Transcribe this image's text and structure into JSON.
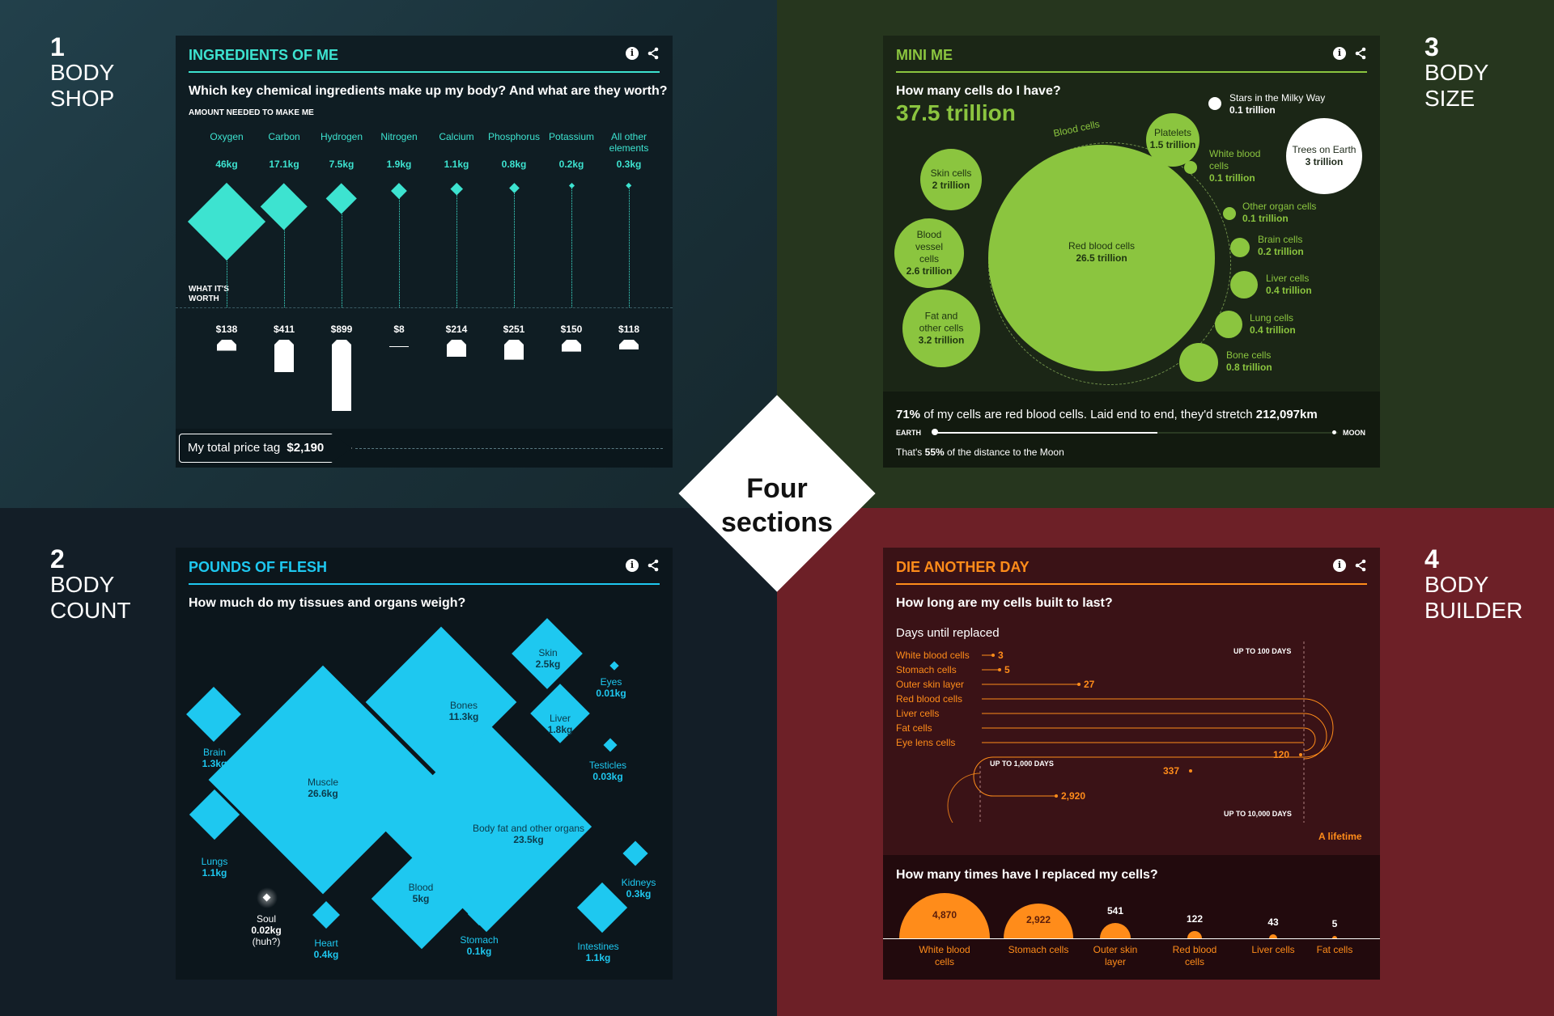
{
  "center": {
    "line1": "Four",
    "line2": "sections"
  },
  "sections": [
    {
      "num": "1",
      "l1": "BODY",
      "l2": "SHOP"
    },
    {
      "num": "2",
      "l1": "BODY",
      "l2": "COUNT"
    },
    {
      "num": "3",
      "l1": "BODY",
      "l2": "SIZE"
    },
    {
      "num": "4",
      "l1": "BODY",
      "l2": "BUILDER"
    }
  ],
  "colors": {
    "teal": "#3de3d0",
    "green": "#8bc53f",
    "cyan": "#1ec8f0",
    "orange": "#ff8c1a"
  },
  "icons": {
    "info": "info-icon",
    "share": "share-icon"
  },
  "info_glyph": "i",
  "ingredients": {
    "title": "INGREDIENTS OF ME",
    "question": "Which key chemical ingredients make up my body? And what are they worth?",
    "amount_label": "AMOUNT NEEDED TO MAKE ME",
    "worth_label_1": "WHAT IT'S",
    "worth_label_2": "WORTH",
    "items": [
      {
        "name": "Oxygen",
        "kg": "46kg",
        "mass": 46,
        "price": "$138",
        "value": 138
      },
      {
        "name": "Carbon",
        "kg": "17.1kg",
        "mass": 17.1,
        "price": "$411",
        "value": 411
      },
      {
        "name": "Hydrogen",
        "kg": "7.5kg",
        "mass": 7.5,
        "price": "$899",
        "value": 899
      },
      {
        "name": "Nitrogen",
        "kg": "1.9kg",
        "mass": 1.9,
        "price": "$8",
        "value": 8
      },
      {
        "name": "Calcium",
        "kg": "1.1kg",
        "mass": 1.1,
        "price": "$214",
        "value": 214
      },
      {
        "name": "Phosphorus",
        "kg": "0.8kg",
        "mass": 0.8,
        "price": "$251",
        "value": 251
      },
      {
        "name": "Potassium",
        "kg": "0.2kg",
        "mass": 0.2,
        "price": "$150",
        "value": 150
      },
      {
        "name": "All other elements",
        "kg": "0.3kg",
        "mass": 0.3,
        "price": "$118",
        "value": 118
      }
    ],
    "total_label": "My total price tag",
    "total_value": "$2,190"
  },
  "mini": {
    "title": "MINI ME",
    "question": "How many cells do I have?",
    "total": "37.5 trillion",
    "blood_cells_label": "Blood cells",
    "cells": [
      {
        "name": "Red blood cells",
        "value": "26.5 trillion"
      },
      {
        "name": "Platelets",
        "value": "1.5 trillion"
      },
      {
        "name": "Skin cells",
        "value": "2 trillion"
      },
      {
        "name": "Blood vessel cells",
        "value": "2.6 trillion"
      },
      {
        "name": "Fat and other cells",
        "value": "3.2 trillion"
      },
      {
        "name": "White blood cells",
        "value": "0.1 trillion"
      },
      {
        "name": "Other organ cells",
        "value": "0.1 trillion"
      },
      {
        "name": "Brain cells",
        "value": "0.2 trillion"
      },
      {
        "name": "Liver cells",
        "value": "0.4 trillion"
      },
      {
        "name": "Lung cells",
        "value": "0.4 trillion"
      },
      {
        "name": "Bone cells",
        "value": "0.8 trillion"
      }
    ],
    "milky": {
      "name": "Stars in the Milky Way",
      "value": "0.1 trillion"
    },
    "trees": {
      "name": "Trees on Earth",
      "value": "3 trillion"
    },
    "footer": {
      "pct": "71%",
      "text": " of my cells are red blood cells. Laid end to end, they'd stretch ",
      "dist": "212,097km",
      "earth": "EARTH",
      "moon": "MOON",
      "note_pre": "That's ",
      "note_pct": "55%",
      "note_post": " of the distance to the Moon",
      "progress": 0.55
    }
  },
  "flesh": {
    "title": "POUNDS OF FLESH",
    "question": "How much do my tissues and organs weigh?",
    "items": [
      {
        "name": "Muscle",
        "kg": "26.6kg"
      },
      {
        "name": "Body fat and other organs",
        "kg": "23.5kg"
      },
      {
        "name": "Bones",
        "kg": "11.3kg"
      },
      {
        "name": "Blood",
        "kg": "5kg"
      },
      {
        "name": "Skin",
        "kg": "2.5kg"
      },
      {
        "name": "Liver",
        "kg": "1.8kg"
      },
      {
        "name": "Brain",
        "kg": "1.3kg"
      },
      {
        "name": "Lungs",
        "kg": "1.1kg"
      },
      {
        "name": "Intestines",
        "kg": "1.1kg"
      },
      {
        "name": "Heart",
        "kg": "0.4kg"
      },
      {
        "name": "Kidneys",
        "kg": "0.3kg"
      },
      {
        "name": "Stomach",
        "kg": "0.1kg"
      },
      {
        "name": "Testicles",
        "kg": "0.03kg"
      },
      {
        "name": "Eyes",
        "kg": "0.01kg"
      }
    ],
    "soul": {
      "name": "Soul",
      "kg": "0.02kg",
      "note": "(huh?)"
    }
  },
  "die": {
    "title": "DIE ANOTHER DAY",
    "question": "How long are my cells built to last?",
    "subhead": "Days until replaced",
    "cells": [
      {
        "name": "White blood cells",
        "days": "3"
      },
      {
        "name": "Stomach cells",
        "days": "5"
      },
      {
        "name": "Outer skin layer",
        "days": "27"
      },
      {
        "name": "Red blood cells",
        "days": "120"
      },
      {
        "name": "Liver cells",
        "days": "337"
      },
      {
        "name": "Fat cells",
        "days": "2,920"
      },
      {
        "name": "Eye lens cells",
        "days": ""
      }
    ],
    "marks": {
      "up100": "UP TO 100 DAYS",
      "up1000": "UP TO 1,000 DAYS",
      "up10000": "UP TO 10,000 DAYS",
      "lifetime": "A lifetime"
    },
    "question2": "How many times have I replaced my cells?",
    "replaced": [
      {
        "name": "White blood cells",
        "count": "4,870",
        "value": 4870
      },
      {
        "name": "Stomach cells",
        "count": "2,922",
        "value": 2922
      },
      {
        "name": "Outer skin layer",
        "count": "541",
        "value": 541
      },
      {
        "name": "Red blood cells",
        "count": "122",
        "value": 122
      },
      {
        "name": "Liver cells",
        "count": "43",
        "value": 43
      },
      {
        "name": "Fat cells",
        "count": "5",
        "value": 5
      }
    ]
  }
}
